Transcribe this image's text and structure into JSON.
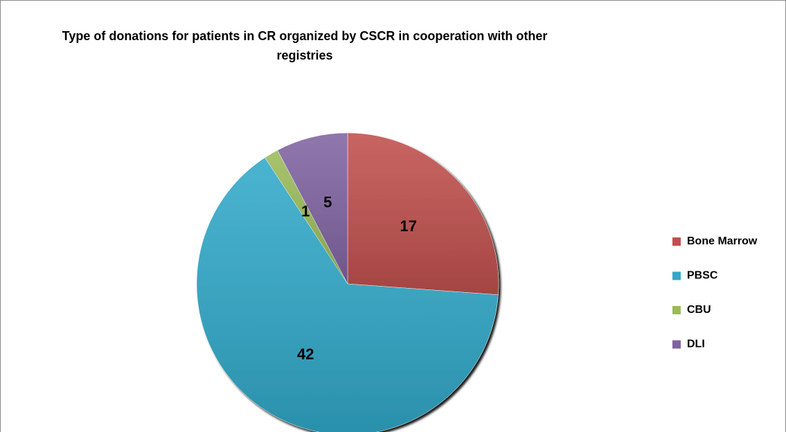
{
  "chart_data": {
    "type": "pie",
    "title": "Type of donations for patients in CR organized by CSCR in cooperation with other registries",
    "categories": [
      "Bone Marrow",
      "PBSC",
      "CBU",
      "DLI"
    ],
    "values": [
      17,
      42,
      1,
      5
    ],
    "colors": [
      "#c0504d",
      "#31a9c9",
      "#9bbb59",
      "#8064a2"
    ],
    "legend": "right"
  }
}
